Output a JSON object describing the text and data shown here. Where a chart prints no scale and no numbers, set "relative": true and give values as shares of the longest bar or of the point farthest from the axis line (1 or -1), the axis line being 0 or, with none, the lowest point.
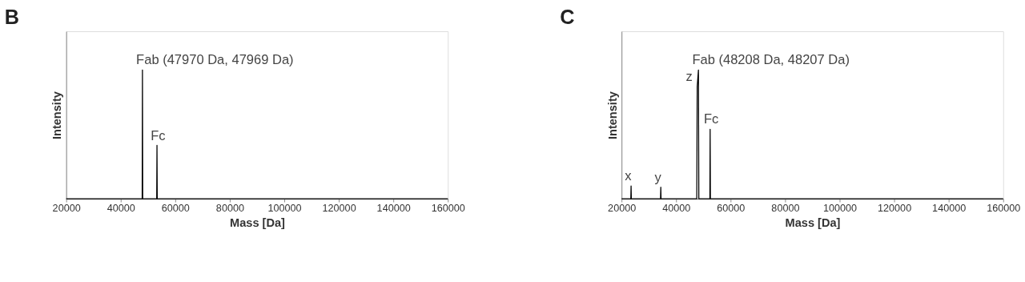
{
  "chart_data": [
    {
      "type": "line",
      "title": "B",
      "xlabel": "Mass [Da]",
      "ylabel": "Intensity",
      "xlim": [
        20000,
        160000
      ],
      "xticks": [
        20000,
        40000,
        60000,
        80000,
        100000,
        120000,
        140000,
        160000
      ],
      "relative": true,
      "series": [
        {
          "color": "#000000",
          "x": [
            20000,
            47870,
            47970,
            48070,
            53200,
            53300,
            53400,
            160000
          ],
          "values": [
            0,
            0,
            1,
            0,
            0,
            0.415,
            0,
            0
          ]
        }
      ],
      "annotations": [
        {
          "text": "Fab (47970 Da, 47969 Da)",
          "x": 47970,
          "y": 1
        },
        {
          "text": "Fc",
          "x": 53300,
          "y": 0.415
        }
      ]
    },
    {
      "type": "line",
      "title": "C",
      "xlabel": "Mass [Da]",
      "ylabel": "Intensity",
      "xlim": [
        20000,
        160000
      ],
      "xticks": [
        20000,
        40000,
        60000,
        80000,
        100000,
        120000,
        140000,
        160000
      ],
      "relative": true,
      "series": [
        {
          "color": "#000000",
          "x": [
            20000,
            23400,
            23500,
            23600,
            34300,
            34400,
            34500,
            47600,
            47750,
            48208,
            48350,
            52400,
            52500,
            52600,
            160000
          ],
          "values": [
            0,
            0,
            0.1,
            0,
            0,
            0.09,
            0,
            0,
            0.87,
            1,
            0,
            0,
            0.54,
            0,
            0
          ]
        }
      ],
      "annotations": [
        {
          "text": "x",
          "x": 23500,
          "y": 0.1
        },
        {
          "text": "y",
          "x": 34400,
          "y": 0.09
        },
        {
          "text": "z",
          "x": 47750,
          "y": 0.87
        },
        {
          "text": "Fab (48208 Da, 48207 Da)",
          "x": 48208,
          "y": 1
        },
        {
          "text": "Fc",
          "x": 52500,
          "y": 0.54
        }
      ]
    }
  ]
}
